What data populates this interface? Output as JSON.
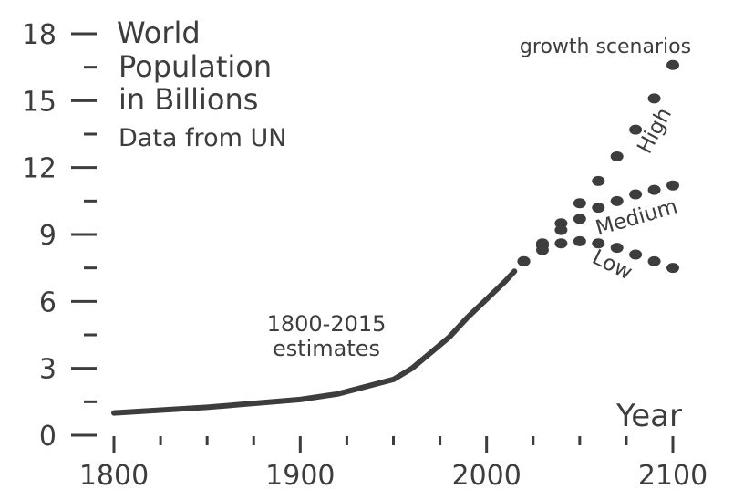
{
  "chart_data": {
    "type": "line",
    "title_lines": [
      "World",
      "Population",
      "in Billions",
      "Data from UN"
    ],
    "xlabel": "Year",
    "ylabel": "",
    "xlim": [
      1800,
      2100
    ],
    "ylim": [
      0,
      18
    ],
    "x_ticks": [
      1800,
      1900,
      2000,
      2100
    ],
    "y_ticks": [
      0,
      3,
      6,
      9,
      12,
      15,
      18
    ],
    "grid": false,
    "annotations": {
      "estimates": [
        "1800-2015",
        "estimates"
      ],
      "scenarios": "growth scenarios"
    },
    "series": [
      {
        "name": "1800-2015 estimates",
        "style": "solid",
        "x": [
          1800,
          1850,
          1900,
          1920,
          1950,
          1960,
          1970,
          1980,
          1990,
          2000,
          2010,
          2015
        ],
        "y": [
          1.0,
          1.25,
          1.6,
          1.85,
          2.5,
          3.0,
          3.7,
          4.4,
          5.3,
          6.1,
          6.9,
          7.35
        ]
      },
      {
        "name": "High",
        "style": "dotted",
        "x": [
          2020,
          2030,
          2040,
          2050,
          2060,
          2070,
          2080,
          2090,
          2100
        ],
        "y": [
          7.8,
          8.6,
          9.5,
          10.4,
          11.4,
          12.5,
          13.7,
          15.1,
          16.6
        ]
      },
      {
        "name": "Medium",
        "style": "dotted",
        "x": [
          2020,
          2030,
          2040,
          2050,
          2060,
          2070,
          2080,
          2090,
          2100
        ],
        "y": [
          7.8,
          8.5,
          9.2,
          9.7,
          10.2,
          10.5,
          10.8,
          11.0,
          11.2
        ]
      },
      {
        "name": "Low",
        "style": "dotted",
        "x": [
          2020,
          2030,
          2040,
          2050,
          2060,
          2070,
          2080,
          2090,
          2100
        ],
        "y": [
          7.8,
          8.3,
          8.6,
          8.7,
          8.6,
          8.4,
          8.1,
          7.8,
          7.5
        ]
      }
    ],
    "color": "#3d3d3d"
  }
}
